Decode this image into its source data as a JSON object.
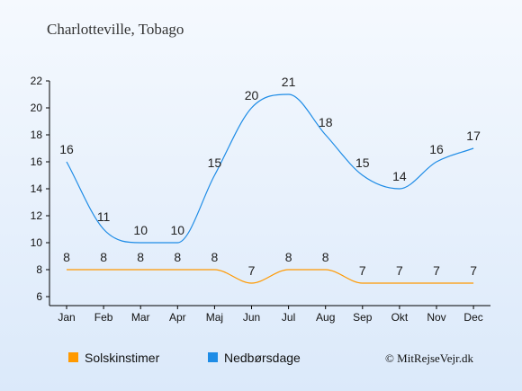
{
  "chart_data": {
    "type": "line",
    "title": "Charlotteville, Tobago",
    "categories": [
      "Jan",
      "Feb",
      "Mar",
      "Apr",
      "Maj",
      "Jun",
      "Jul",
      "Aug",
      "Sep",
      "Okt",
      "Nov",
      "Dec"
    ],
    "series": [
      {
        "name": "Solskinstimer",
        "color": "#ff9900",
        "values": [
          8,
          8,
          8,
          8,
          8,
          7,
          8,
          8,
          7,
          7,
          7,
          7
        ]
      },
      {
        "name": "Nedbørsdage",
        "color": "#1e8ce6",
        "values": [
          16,
          11,
          10,
          10,
          15,
          20,
          21,
          18,
          15,
          14,
          16,
          17
        ]
      }
    ],
    "ylim": [
      6,
      22
    ],
    "yticks": [
      6,
      8,
      10,
      12,
      14,
      16,
      18,
      20,
      22
    ],
    "xlabel": "",
    "ylabel": "",
    "grid": false,
    "legend_position": "bottom",
    "background_gradient": [
      "#f5f9fe",
      "#dbe9fa"
    ],
    "credit": "© MitRejseVejr.dk"
  }
}
